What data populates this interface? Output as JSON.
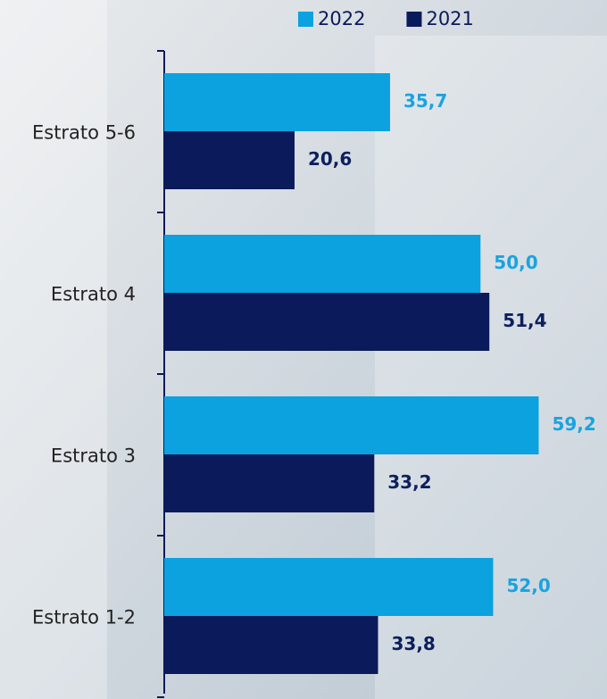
{
  "chart_data": {
    "type": "hbar",
    "categories": [
      "Estrato 5-6",
      "Estrato 4",
      "Estrato 3",
      "Estrato 1-2"
    ],
    "series": [
      {
        "name": "2022",
        "color": "#0ba2df",
        "label_color": "#1aa3e0",
        "values": [
          35.7,
          50.0,
          59.2,
          52.0
        ],
        "value_labels": [
          "35,7",
          "50,0",
          "59,2",
          "52,0"
        ]
      },
      {
        "name": "2021",
        "color": "#0b1a5a",
        "label_color": "#0d1f5c",
        "values": [
          20.6,
          51.4,
          33.2,
          33.8
        ],
        "value_labels": [
          "20,6",
          "51,4",
          "33,2",
          "33,8"
        ]
      }
    ],
    "xlim": [
      0,
      70
    ],
    "legend": "top"
  }
}
